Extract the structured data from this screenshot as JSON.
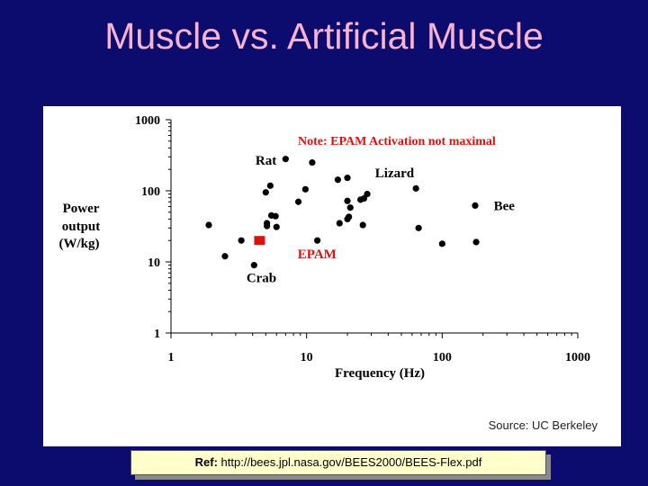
{
  "slide": {
    "title": "Muscle vs. Artificial Muscle",
    "source": "Source: UC Berkeley",
    "ref_label": "Ref:",
    "ref_url": "http://bees.jpl.nasa.gov/BEES2000/BEES-Flex.pdf"
  },
  "chart_data": {
    "type": "scatter",
    "title": "",
    "xlabel": "Frequency (Hz)",
    "ylabel": [
      "Power",
      "output",
      "(W/kg)"
    ],
    "x_scale": "log",
    "y_scale": "log",
    "xlim": [
      1,
      1000
    ],
    "ylim": [
      1,
      1000
    ],
    "x_ticks": [
      1,
      10,
      100,
      1000
    ],
    "x_tick_labels": [
      "1",
      "10",
      "100",
      "1000"
    ],
    "y_ticks": [
      1,
      10,
      100,
      1000
    ],
    "y_tick_labels": [
      "1",
      "10",
      "100",
      "1000"
    ],
    "grid": false,
    "note": "Note: EPAM Activation not maximal",
    "colors": {
      "points": "#000000",
      "epam": "#e01010",
      "note": "#e01010"
    },
    "series": [
      {
        "marker": "circle",
        "points": [
          [
            1.9,
            33
          ],
          [
            2.5,
            12
          ],
          [
            3.3,
            20
          ],
          [
            4.1,
            9
          ],
          [
            5.0,
            95
          ],
          [
            5.4,
            118
          ],
          [
            5.5,
            45
          ],
          [
            5.9,
            44
          ],
          [
            5.1,
            35
          ],
          [
            5.1,
            32
          ],
          [
            6.0,
            31
          ],
          [
            7.0,
            280
          ],
          [
            8.7,
            70
          ],
          [
            9.8,
            105
          ],
          [
            11.0,
            250
          ],
          [
            12.0,
            20
          ],
          [
            17.0,
            143
          ],
          [
            20.0,
            152
          ],
          [
            20.0,
            72
          ],
          [
            20.5,
            43
          ],
          [
            21.0,
            58
          ],
          [
            17.5,
            35
          ],
          [
            20.0,
            40
          ],
          [
            25.0,
            75
          ],
          [
            26.5,
            78
          ],
          [
            28.0,
            90
          ],
          [
            26.0,
            33
          ],
          [
            64.0,
            108
          ],
          [
            67.0,
            30
          ],
          [
            100.0,
            18
          ],
          [
            175.0,
            62
          ],
          [
            178.0,
            19
          ]
        ]
      },
      {
        "name": "EPAM",
        "marker": "square",
        "points": [
          [
            4.5,
            20
          ]
        ]
      }
    ],
    "annotations": [
      {
        "text": "Rat",
        "x": 4.2,
        "y": 270
      },
      {
        "text": "Lizard",
        "x": 32,
        "y": 180
      },
      {
        "text": "Bee",
        "x": 240,
        "y": 62
      },
      {
        "text": "Crab",
        "x": 3.6,
        "y": 6
      },
      {
        "text": "EPAM",
        "x": 8.6,
        "y": 13
      }
    ]
  }
}
